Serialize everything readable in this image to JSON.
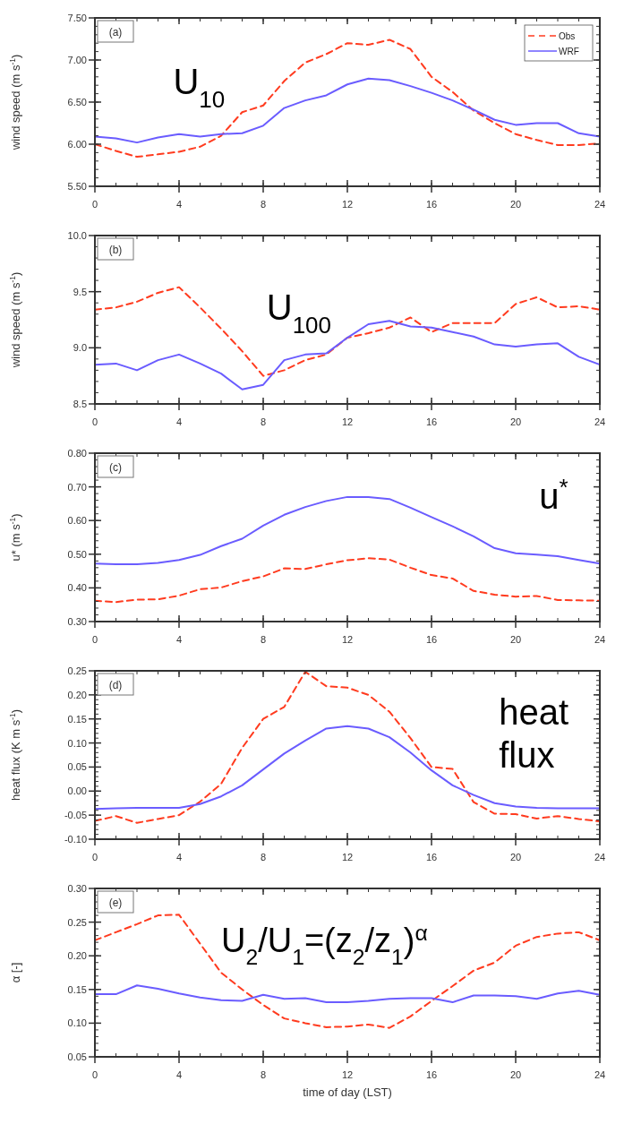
{
  "chart_data": [
    {
      "type": "line",
      "ylabel": "wind speed (m s$^{-1}$)",
      "annotations": [
        "(a)",
        "U$_{10}$"
      ],
      "x": [
        0,
        1,
        2,
        3,
        4,
        5,
        6,
        7,
        8,
        9,
        10,
        11,
        12,
        13,
        14,
        15,
        16,
        17,
        18,
        19,
        20,
        21,
        22,
        23,
        24
      ],
      "xlim": [
        0,
        24
      ],
      "xticks": [
        0,
        4,
        8,
        12,
        16,
        20,
        24
      ],
      "ylim": [
        5.5,
        7.5
      ],
      "yticks": [
        {
          "value": 5.5,
          "label": "5.50"
        },
        {
          "value": 6,
          "label": "6.00"
        },
        {
          "value": 6.5,
          "label": "6.50"
        },
        {
          "value": 7,
          "label": "7.00"
        },
        {
          "value": 7.5,
          "label": "7.50"
        }
      ],
      "legend": "top right",
      "series": [
        {
          "name": "Obs",
          "color": "#ff3b1f",
          "line_style": "dashed",
          "values": [
            6.0,
            5.92,
            5.85,
            5.88,
            5.91,
            5.97,
            6.1,
            6.38,
            6.46,
            6.75,
            6.97,
            7.07,
            7.2,
            7.18,
            7.24,
            7.13,
            6.8,
            6.62,
            6.4,
            6.25,
            6.12,
            6.05,
            5.99,
            5.99,
            6.01
          ]
        },
        {
          "name": "WRF",
          "color": "#6a5cff",
          "line_style": "solid",
          "values": [
            6.09,
            6.07,
            6.02,
            6.08,
            6.12,
            6.09,
            6.12,
            6.13,
            6.22,
            6.43,
            6.52,
            6.58,
            6.71,
            6.78,
            6.76,
            6.69,
            6.61,
            6.52,
            6.41,
            6.29,
            6.23,
            6.25,
            6.25,
            6.13,
            6.09
          ]
        }
      ]
    },
    {
      "type": "line",
      "ylabel": "wind speed (m s$^{-1}$)",
      "annotations": [
        "(b)",
        "U$_{100}$"
      ],
      "x": [
        0,
        1,
        2,
        3,
        4,
        5,
        6,
        7,
        8,
        9,
        10,
        11,
        12,
        13,
        14,
        15,
        16,
        17,
        18,
        19,
        20,
        21,
        22,
        23,
        24
      ],
      "xlim": [
        0,
        24
      ],
      "xticks": [
        0,
        4,
        8,
        12,
        16,
        20,
        24
      ],
      "ylim": [
        8.5,
        10
      ],
      "yticks": [
        8.5,
        {
          "value": 9,
          "label": "9.0"
        },
        9.5,
        {
          "value": 10,
          "label": "10.0"
        }
      ],
      "series": [
        {
          "color": "#ff3b1f",
          "line_style": "dashed",
          "values": [
            9.34,
            9.36,
            9.41,
            9.49,
            9.54,
            9.36,
            9.17,
            8.97,
            8.75,
            8.8,
            8.89,
            8.94,
            9.09,
            9.13,
            9.18,
            9.27,
            9.14,
            9.22,
            9.22,
            9.22,
            9.39,
            9.45,
            9.36,
            9.37,
            9.34
          ]
        },
        {
          "color": "#6a5cff",
          "line_style": "solid",
          "values": [
            8.85,
            8.86,
            8.8,
            8.89,
            8.94,
            8.86,
            8.77,
            8.63,
            8.67,
            8.89,
            8.94,
            8.95,
            9.09,
            9.21,
            9.24,
            9.19,
            9.18,
            9.14,
            9.1,
            9.03,
            9.01,
            9.03,
            9.04,
            8.92,
            8.85
          ]
        }
      ]
    },
    {
      "type": "line",
      "ylabel": "u* (m s$^{-1}$)",
      "annotations": [
        "(c)",
        "u$^{*}$"
      ],
      "x": [
        0,
        1,
        2,
        3,
        4,
        5,
        6,
        7,
        8,
        9,
        10,
        11,
        12,
        13,
        14,
        15,
        16,
        17,
        18,
        19,
        20,
        21,
        22,
        23,
        24
      ],
      "xlim": [
        0,
        24
      ],
      "xticks": [
        0,
        4,
        8,
        12,
        16,
        20,
        24
      ],
      "ylim": [
        0.3,
        0.8
      ],
      "yticks": [
        {
          "value": 0.3,
          "label": "0.30"
        },
        {
          "value": 0.4,
          "label": "0.40"
        },
        {
          "value": 0.5,
          "label": "0.50"
        },
        {
          "value": 0.6,
          "label": "0.60"
        },
        {
          "value": 0.7,
          "label": "0.70"
        },
        {
          "value": 0.8,
          "label": "0.80"
        }
      ],
      "series": [
        {
          "color": "#ff3b1f",
          "line_style": "dashed",
          "values": [
            0.362,
            0.358,
            0.365,
            0.366,
            0.377,
            0.396,
            0.401,
            0.42,
            0.434,
            0.458,
            0.456,
            0.47,
            0.482,
            0.488,
            0.484,
            0.46,
            0.438,
            0.428,
            0.391,
            0.38,
            0.374,
            0.376,
            0.364,
            0.363,
            0.362
          ]
        },
        {
          "color": "#6a5cff",
          "line_style": "solid",
          "values": [
            0.472,
            0.47,
            0.47,
            0.474,
            0.483,
            0.498,
            0.524,
            0.546,
            0.585,
            0.617,
            0.64,
            0.658,
            0.67,
            0.67,
            0.664,
            0.638,
            0.61,
            0.583,
            0.553,
            0.518,
            0.503,
            0.499,
            0.494,
            0.483,
            0.472
          ]
        }
      ]
    },
    {
      "type": "line",
      "ylabel": "heat flux (K m s$^{-1}$)",
      "annotations": [
        "(d)",
        "heat flux"
      ],
      "x": [
        0,
        1,
        2,
        3,
        4,
        5,
        6,
        7,
        8,
        9,
        10,
        11,
        12,
        13,
        14,
        15,
        16,
        17,
        18,
        19,
        20,
        21,
        22,
        23,
        24
      ],
      "xlim": [
        0,
        24
      ],
      "xticks": [
        0,
        4,
        8,
        12,
        16,
        20,
        24
      ],
      "ylim": [
        -0.1,
        0.25
      ],
      "yticks": [
        {
          "value": -0.1,
          "label": "-0.10"
        },
        -0.05,
        {
          "value": 0,
          "label": "0.00"
        },
        0.05,
        {
          "value": 0.1,
          "label": "0.10"
        },
        0.15,
        {
          "value": 0.2,
          "label": "0.20"
        },
        0.25
      ],
      "series": [
        {
          "color": "#ff3b1f",
          "line_style": "dashed",
          "values": [
            -0.062,
            -0.052,
            -0.066,
            -0.058,
            -0.05,
            -0.022,
            0.015,
            0.09,
            0.15,
            0.175,
            0.248,
            0.218,
            0.215,
            0.2,
            0.165,
            0.11,
            0.05,
            0.046,
            -0.023,
            -0.047,
            -0.048,
            -0.057,
            -0.052,
            -0.058,
            -0.063
          ]
        },
        {
          "color": "#6a5cff",
          "line_style": "solid",
          "values": [
            -0.037,
            -0.036,
            -0.035,
            -0.035,
            -0.035,
            -0.027,
            -0.011,
            0.012,
            0.045,
            0.078,
            0.105,
            0.13,
            0.135,
            0.13,
            0.112,
            0.08,
            0.043,
            0.012,
            -0.008,
            -0.025,
            -0.032,
            -0.035,
            -0.036,
            -0.036,
            -0.036
          ]
        }
      ]
    },
    {
      "type": "line",
      "ylabel": "α [-]",
      "xlabel": "time of day (LST)",
      "annotations": [
        "(e)",
        "U$_{2}$/U$_{1}$=(z$_{2}$/z$_{1}$)$^{α}$"
      ],
      "x": [
        0,
        1,
        2,
        3,
        4,
        5,
        6,
        7,
        8,
        9,
        10,
        11,
        12,
        13,
        14,
        15,
        16,
        17,
        18,
        19,
        20,
        21,
        22,
        23,
        24
      ],
      "xlim": [
        0,
        24
      ],
      "xticks": [
        0,
        4,
        8,
        12,
        16,
        20,
        24
      ],
      "ylim": [
        0.05,
        0.3
      ],
      "yticks": [
        0.05,
        {
          "value": 0.1,
          "label": "0.10"
        },
        0.15,
        {
          "value": 0.2,
          "label": "0.20"
        },
        0.25,
        {
          "value": 0.3,
          "label": "0.30"
        }
      ],
      "series": [
        {
          "color": "#ff3b1f",
          "line_style": "dashed",
          "values": [
            0.223,
            0.235,
            0.247,
            0.26,
            0.261,
            0.218,
            0.175,
            0.15,
            0.127,
            0.107,
            0.1,
            0.094,
            0.095,
            0.098,
            0.093,
            0.11,
            0.133,
            0.155,
            0.178,
            0.19,
            0.215,
            0.228,
            0.233,
            0.235,
            0.223
          ]
        },
        {
          "color": "#6a5cff",
          "line_style": "solid",
          "values": [
            0.143,
            0.143,
            0.156,
            0.151,
            0.144,
            0.138,
            0.134,
            0.133,
            0.142,
            0.136,
            0.137,
            0.131,
            0.131,
            0.133,
            0.136,
            0.137,
            0.137,
            0.131,
            0.141,
            0.141,
            0.14,
            0.136,
            0.144,
            0.148,
            0.142
          ]
        }
      ]
    }
  ]
}
